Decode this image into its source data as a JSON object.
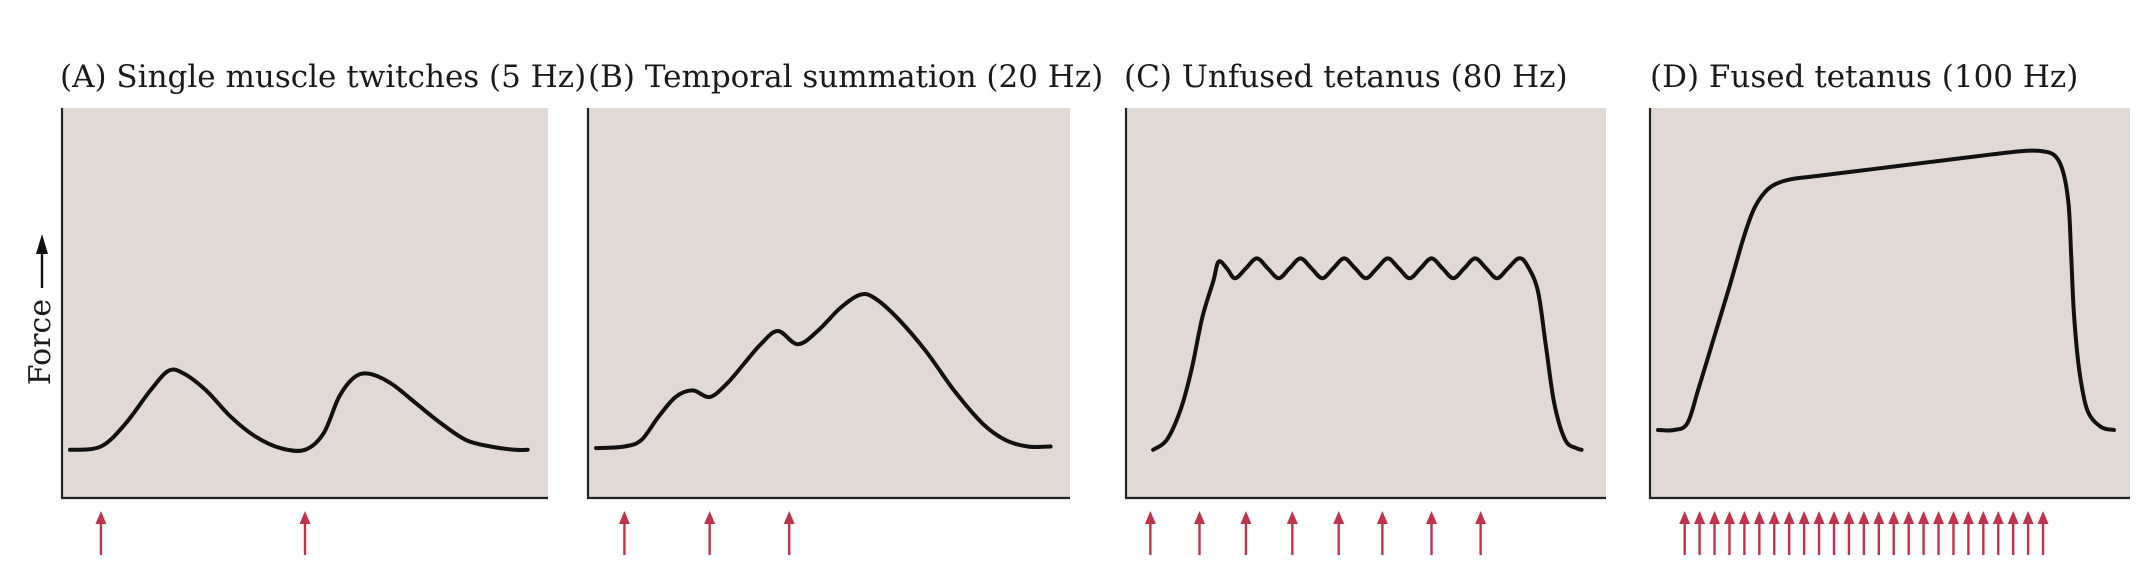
{
  "chart_data": {
    "type": "line",
    "ylabel": "Force",
    "panels": [
      {
        "id": "A",
        "title": "(A)  Single muscle twitches (5 Hz)",
        "stimuli": [
          0.5,
          3.8
        ],
        "trace": [
          [
            0,
            0.04
          ],
          [
            0.5,
            0.05
          ],
          [
            0.9,
            0.12
          ],
          [
            1.3,
            0.22
          ],
          [
            1.6,
            0.28
          ],
          [
            1.85,
            0.27
          ],
          [
            2.2,
            0.22
          ],
          [
            2.6,
            0.14
          ],
          [
            3.0,
            0.08
          ],
          [
            3.4,
            0.045
          ],
          [
            3.8,
            0.04
          ],
          [
            4.1,
            0.09
          ],
          [
            4.35,
            0.2
          ],
          [
            4.6,
            0.26
          ],
          [
            4.85,
            0.27
          ],
          [
            5.2,
            0.24
          ],
          [
            5.6,
            0.18
          ],
          [
            6.0,
            0.12
          ],
          [
            6.4,
            0.07
          ],
          [
            6.8,
            0.05
          ],
          [
            7.2,
            0.04
          ],
          [
            7.4,
            0.04
          ]
        ]
      },
      {
        "id": "B",
        "title": "(B)  Temporal summation (20 Hz)",
        "stimuli": [
          0.5,
          2.0,
          3.4
        ],
        "trace": [
          [
            0,
            0.045
          ],
          [
            0.5,
            0.05
          ],
          [
            0.8,
            0.07
          ],
          [
            1.1,
            0.14
          ],
          [
            1.4,
            0.2
          ],
          [
            1.7,
            0.22
          ],
          [
            2.0,
            0.2
          ],
          [
            2.3,
            0.24
          ],
          [
            2.6,
            0.3
          ],
          [
            2.9,
            0.36
          ],
          [
            3.2,
            0.4
          ],
          [
            3.55,
            0.36
          ],
          [
            3.9,
            0.4
          ],
          [
            4.3,
            0.47
          ],
          [
            4.65,
            0.51
          ],
          [
            4.9,
            0.5
          ],
          [
            5.3,
            0.44
          ],
          [
            5.8,
            0.34
          ],
          [
            6.3,
            0.22
          ],
          [
            6.8,
            0.12
          ],
          [
            7.2,
            0.07
          ],
          [
            7.6,
            0.05
          ],
          [
            8.0,
            0.05
          ]
        ]
      },
      {
        "id": "C",
        "title": "(C)  Unfused tetanus (80 Hz)",
        "stimuli": [
          0.3,
          1.2,
          2.05,
          2.9,
          3.75,
          4.55,
          5.45,
          6.35
        ],
        "trace": [
          [
            0.35,
            0.04
          ],
          [
            0.6,
            0.07
          ],
          [
            0.85,
            0.16
          ],
          [
            1.05,
            0.28
          ],
          [
            1.25,
            0.44
          ],
          [
            1.45,
            0.55
          ],
          [
            1.55,
            0.61
          ],
          [
            1.7,
            0.59
          ],
          [
            1.85,
            0.56
          ],
          [
            2.05,
            0.59
          ],
          [
            2.25,
            0.62
          ],
          [
            2.45,
            0.59
          ],
          [
            2.65,
            0.56
          ],
          [
            2.85,
            0.59
          ],
          [
            3.05,
            0.62
          ],
          [
            3.25,
            0.59
          ],
          [
            3.45,
            0.56
          ],
          [
            3.65,
            0.59
          ],
          [
            3.85,
            0.62
          ],
          [
            4.05,
            0.59
          ],
          [
            4.25,
            0.56
          ],
          [
            4.45,
            0.59
          ],
          [
            4.65,
            0.62
          ],
          [
            4.85,
            0.59
          ],
          [
            5.05,
            0.56
          ],
          [
            5.25,
            0.59
          ],
          [
            5.45,
            0.62
          ],
          [
            5.65,
            0.59
          ],
          [
            5.85,
            0.56
          ],
          [
            6.05,
            0.59
          ],
          [
            6.25,
            0.62
          ],
          [
            6.45,
            0.59
          ],
          [
            6.65,
            0.56
          ],
          [
            6.85,
            0.59
          ],
          [
            7.05,
            0.62
          ],
          [
            7.2,
            0.6
          ],
          [
            7.4,
            0.52
          ],
          [
            7.55,
            0.35
          ],
          [
            7.7,
            0.18
          ],
          [
            7.9,
            0.07
          ],
          [
            8.1,
            0.045
          ],
          [
            8.2,
            0.04
          ]
        ]
      },
      {
        "id": "D",
        "title": "(D)  Fused tetanus (100 Hz)",
        "stimuli": [
          0.5,
          0.78,
          1.06,
          1.34,
          1.62,
          1.9,
          2.18,
          2.46,
          2.74,
          3.02,
          3.3,
          3.58,
          3.86,
          4.14,
          4.42,
          4.7,
          4.98,
          5.26,
          5.54,
          5.82,
          6.1,
          6.38,
          6.66,
          6.94,
          7.22
        ],
        "trace": [
          [
            0,
            0.1
          ],
          [
            0.3,
            0.1
          ],
          [
            0.55,
            0.12
          ],
          [
            0.75,
            0.22
          ],
          [
            1.05,
            0.38
          ],
          [
            1.35,
            0.54
          ],
          [
            1.6,
            0.68
          ],
          [
            1.8,
            0.77
          ],
          [
            2.0,
            0.82
          ],
          [
            2.2,
            0.845
          ],
          [
            2.5,
            0.86
          ],
          [
            3.0,
            0.87
          ],
          [
            4.0,
            0.89
          ],
          [
            5.0,
            0.91
          ],
          [
            6.0,
            0.93
          ],
          [
            6.8,
            0.945
          ],
          [
            7.2,
            0.945
          ],
          [
            7.45,
            0.93
          ],
          [
            7.6,
            0.88
          ],
          [
            7.7,
            0.78
          ],
          [
            7.75,
            0.62
          ],
          [
            7.8,
            0.45
          ],
          [
            7.9,
            0.28
          ],
          [
            8.05,
            0.16
          ],
          [
            8.3,
            0.11
          ],
          [
            8.55,
            0.1
          ]
        ]
      }
    ]
  }
}
